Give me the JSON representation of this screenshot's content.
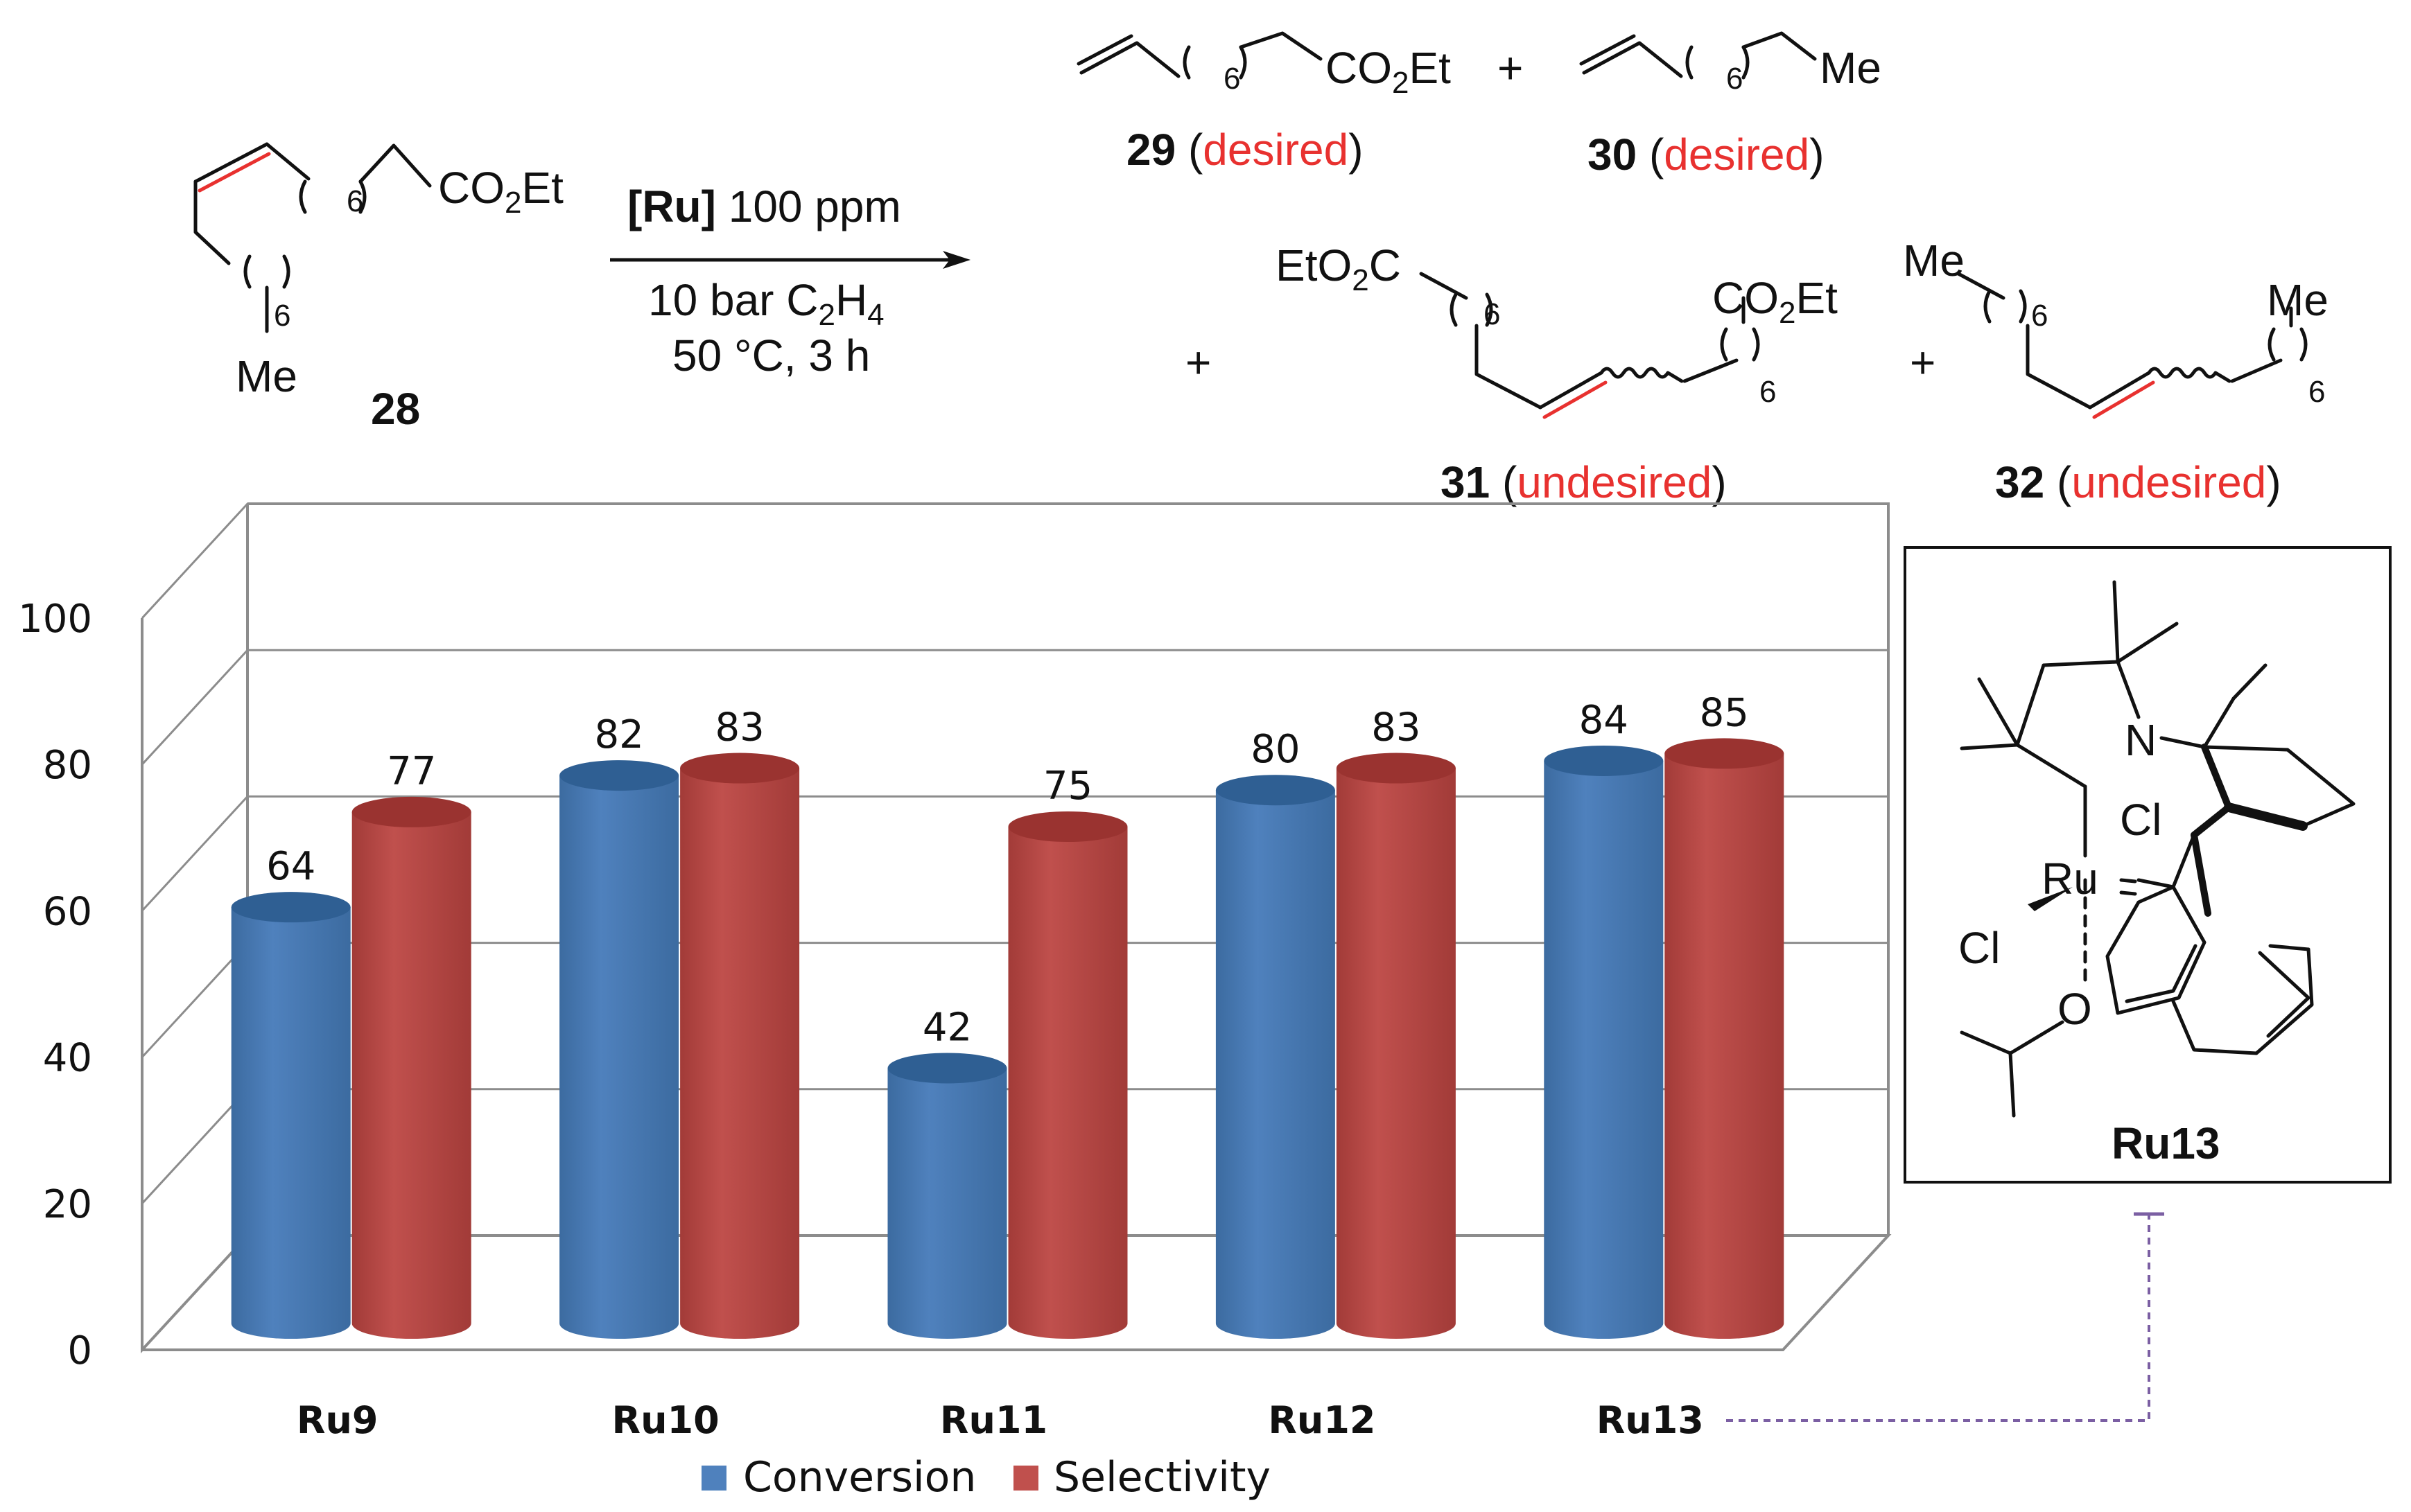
{
  "scheme": {
    "sm_label": "28",
    "sm_co2et": "CO",
    "sm_sub2": "2",
    "sm_et": "Et",
    "sm_paren6": "6",
    "sm_me": "Me",
    "arrow_ru": "[Ru]",
    "arrow_ppm": " 100 ppm",
    "arrow_line2a": "10 bar C",
    "arrow_line2b": "2",
    "arrow_line2c": "H",
    "arrow_line2d": "4",
    "arrow_line3": "50 °C, 3 h",
    "plus": "+",
    "p29_label": "29",
    "p30_label": "30",
    "p31_label": "31",
    "p32_label": "32",
    "desired": "desired",
    "undesired": "undesired",
    "open_paren": " (",
    "close_paren": ")",
    "eto2c_a": "EtO",
    "eto2c_b": "2",
    "eto2c_c": "C"
  },
  "catalyst": {
    "label": "Ru13",
    "atom_n": "N",
    "atom_ru": "Ru",
    "atom_cl": "Cl",
    "atom_o": "O"
  },
  "chart_data": {
    "type": "bar",
    "categories": [
      "Ru9",
      "Ru10",
      "Ru11",
      "Ru12",
      "Ru13"
    ],
    "series": [
      {
        "name": "Conversion",
        "values": [
          64,
          82,
          42,
          80,
          84
        ],
        "color": "#4f81bd"
      },
      {
        "name": "Selectivity",
        "values": [
          77,
          83,
          75,
          83,
          85
        ],
        "color": "#c0504d"
      }
    ],
    "yticks": [
      "0",
      "20",
      "40",
      "60",
      "80",
      "100"
    ],
    "ylim": [
      0,
      100
    ],
    "grid": true,
    "legend": "bottom"
  },
  "colors": {
    "red_text": "#e8312f",
    "grid": "#8c8c8c",
    "link": "#7b5fa3"
  }
}
